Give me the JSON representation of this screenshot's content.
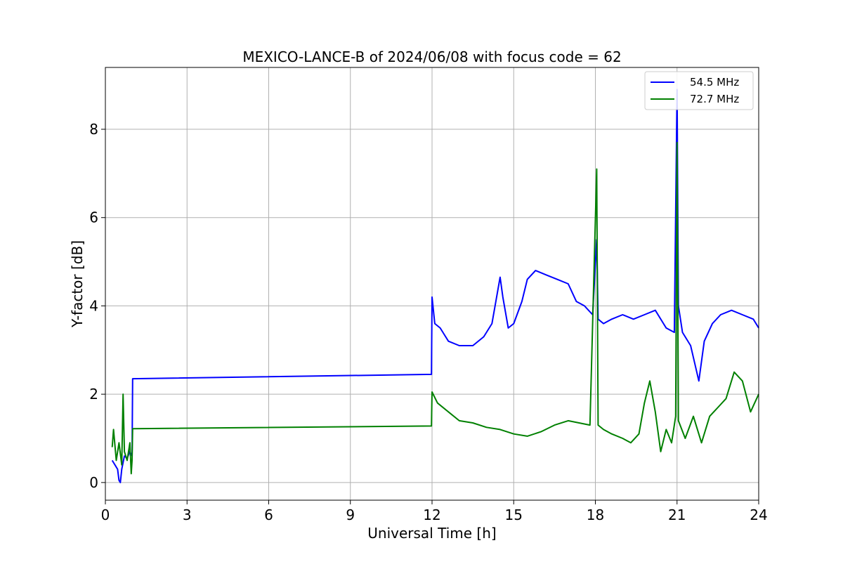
{
  "chart_data": {
    "type": "line",
    "title": "MEXICO-LANCE-B of 2024/06/08 with focus code = 62",
    "xlabel": "Universal Time [h]",
    "ylabel": "Y-factor [dB]",
    "xlim": [
      0,
      24
    ],
    "ylim": [
      -0.4,
      9.4
    ],
    "xticks": [
      0,
      3,
      6,
      9,
      12,
      15,
      18,
      21,
      24
    ],
    "yticks": [
      0,
      2,
      4,
      6,
      8
    ],
    "grid": true,
    "legend_position": "top-right",
    "series": [
      {
        "name": "54.5 MHz",
        "color": "#0000ff",
        "x": [
          0.25,
          0.35,
          0.45,
          0.5,
          0.55,
          0.6,
          0.7,
          0.8,
          0.9,
          0.98,
          1.0,
          11.98,
          12.0,
          12.1,
          12.3,
          12.6,
          13.0,
          13.5,
          13.9,
          14.2,
          14.5,
          14.6,
          14.8,
          15.0,
          15.3,
          15.5,
          15.8,
          16.2,
          16.6,
          17.0,
          17.3,
          17.6,
          17.9,
          18.05,
          18.1,
          18.3,
          18.6,
          19.0,
          19.4,
          19.8,
          20.2,
          20.6,
          20.9,
          21.0,
          21.05,
          21.2,
          21.5,
          21.8,
          22.0,
          22.3,
          22.6,
          23.0,
          23.4,
          23.8,
          24.0
        ],
        "y": [
          0.5,
          0.4,
          0.3,
          0.05,
          0.0,
          0.3,
          0.6,
          0.55,
          0.7,
          0.6,
          2.35,
          2.45,
          4.2,
          3.6,
          3.5,
          3.2,
          3.1,
          3.1,
          3.3,
          3.6,
          4.65,
          4.2,
          3.5,
          3.6,
          4.1,
          4.6,
          4.8,
          4.7,
          4.6,
          4.5,
          4.1,
          4.0,
          3.8,
          5.5,
          3.7,
          3.6,
          3.7,
          3.8,
          3.7,
          3.8,
          3.9,
          3.5,
          3.4,
          8.9,
          4.0,
          3.4,
          3.1,
          2.3,
          3.2,
          3.6,
          3.8,
          3.9,
          3.8,
          3.7,
          3.5
        ]
      },
      {
        "name": "72.7 MHz",
        "color": "#008000",
        "x": [
          0.25,
          0.3,
          0.4,
          0.5,
          0.6,
          0.65,
          0.7,
          0.8,
          0.9,
          0.95,
          0.98,
          1.0,
          11.98,
          12.0,
          12.2,
          12.6,
          13.0,
          13.5,
          14.0,
          14.5,
          15.0,
          15.5,
          16.0,
          16.5,
          17.0,
          17.4,
          17.8,
          18.05,
          18.1,
          18.3,
          18.6,
          19.0,
          19.3,
          19.6,
          19.8,
          20.0,
          20.2,
          20.4,
          20.6,
          20.8,
          20.95,
          21.0,
          21.05,
          21.3,
          21.6,
          21.9,
          22.2,
          22.5,
          22.8,
          23.1,
          23.4,
          23.7,
          24.0
        ],
        "y": [
          0.8,
          1.2,
          0.5,
          0.9,
          0.4,
          2.0,
          0.7,
          0.5,
          0.9,
          0.2,
          0.5,
          1.22,
          1.28,
          2.05,
          1.8,
          1.6,
          1.4,
          1.35,
          1.25,
          1.2,
          1.1,
          1.05,
          1.15,
          1.3,
          1.4,
          1.35,
          1.3,
          7.1,
          1.3,
          1.2,
          1.1,
          1.0,
          0.9,
          1.1,
          1.8,
          2.3,
          1.6,
          0.7,
          1.2,
          0.9,
          1.5,
          7.7,
          1.4,
          1.0,
          1.5,
          0.9,
          1.5,
          1.7,
          1.9,
          2.5,
          2.3,
          1.6,
          2.0
        ]
      }
    ]
  }
}
